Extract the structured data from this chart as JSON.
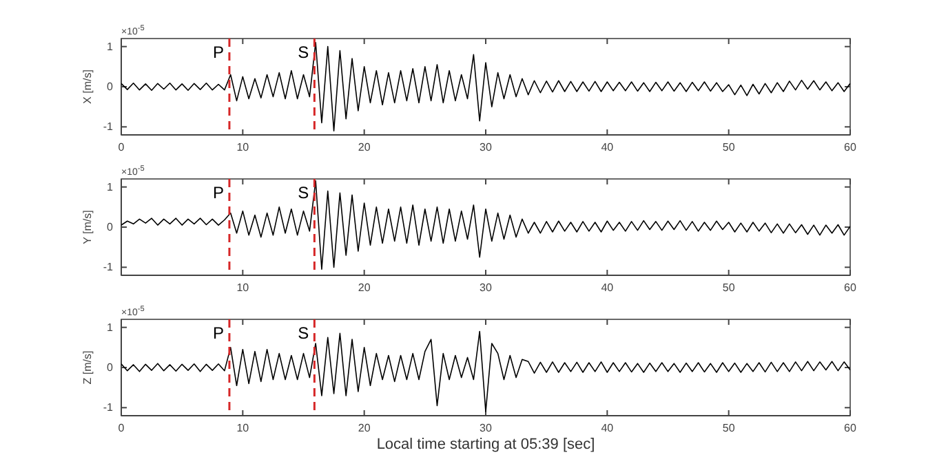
{
  "chart_data": [
    {
      "type": "line",
      "ylabel": "X [m/s]",
      "annotations": [
        "×10$^{-5}$"
      ],
      "xlim": [
        0,
        60
      ],
      "xticks": [
        0,
        10,
        20,
        30,
        40,
        50,
        60
      ],
      "ylim": [
        -1.2,
        1.2
      ],
      "yticks": [
        -1,
        0,
        1
      ],
      "grid": false,
      "marker": "none",
      "line_style": "solid",
      "ref_lines": [
        {
          "axis": "x",
          "value": 8.9,
          "label": "P",
          "color": "#d62728",
          "line_style": "dashed"
        },
        {
          "axis": "x",
          "value": 15.9,
          "label": "S",
          "color": "#d62728",
          "line_style": "dashed"
        }
      ],
      "x": [
        0,
        0.5,
        1,
        1.5,
        2,
        2.5,
        3,
        3.5,
        4,
        4.5,
        5,
        5.5,
        6,
        6.5,
        7,
        7.5,
        8,
        8.5,
        9,
        9.5,
        10,
        10.5,
        11,
        11.5,
        12,
        12.5,
        13,
        13.5,
        14,
        14.5,
        15,
        15.5,
        16,
        16.5,
        17,
        17.5,
        18,
        18.5,
        19,
        19.5,
        20,
        20.5,
        21,
        21.5,
        22,
        22.5,
        23,
        23.5,
        24,
        24.5,
        25,
        25.5,
        26,
        26.5,
        27,
        27.5,
        28,
        28.5,
        29,
        29.5,
        30,
        30.5,
        31,
        31.5,
        32,
        32.5,
        33,
        33.5,
        34,
        34.5,
        35,
        35.5,
        36,
        36.5,
        37,
        37.5,
        38,
        38.5,
        39,
        39.5,
        40,
        40.5,
        41,
        41.5,
        42,
        42.5,
        43,
        43.5,
        44,
        44.5,
        45,
        45.5,
        46,
        46.5,
        47,
        47.5,
        48,
        48.5,
        49,
        49.5,
        50,
        50.5,
        51,
        51.5,
        52,
        52.5,
        53,
        53.5,
        54,
        54.5,
        55,
        55.5,
        56,
        56.5,
        57,
        57.5,
        58,
        58.5,
        59,
        59.5,
        60
      ],
      "series": [
        {
          "color": "#000000",
          "values": [
            0.08,
            -0.07,
            0.09,
            -0.08,
            0.07,
            -0.09,
            0.08,
            -0.06,
            0.09,
            -0.08,
            0.07,
            -0.09,
            0.08,
            -0.07,
            0.09,
            -0.08,
            0.06,
            -0.08,
            0.3,
            -0.35,
            0.25,
            -0.3,
            0.2,
            -0.28,
            0.3,
            -0.25,
            0.35,
            -0.3,
            0.4,
            -0.3,
            0.3,
            -0.25,
            1.1,
            -0.9,
            1.0,
            -1.1,
            0.9,
            -0.8,
            0.7,
            -0.6,
            0.5,
            -0.4,
            0.4,
            -0.45,
            0.35,
            -0.4,
            0.4,
            -0.35,
            0.45,
            -0.4,
            0.5,
            -0.35,
            0.55,
            -0.4,
            0.4,
            -0.35,
            0.3,
            -0.3,
            0.8,
            -0.85,
            0.6,
            -0.5,
            0.35,
            -0.3,
            0.3,
            -0.25,
            0.2,
            -0.2,
            0.15,
            -0.15,
            0.14,
            -0.13,
            0.15,
            -0.12,
            0.13,
            -0.12,
            0.12,
            -0.11,
            0.13,
            -0.12,
            0.12,
            -0.1,
            0.11,
            -0.1,
            0.12,
            -0.11,
            0.1,
            -0.12,
            0.11,
            -0.1,
            0.12,
            -0.11,
            0.1,
            -0.12,
            0.11,
            -0.1,
            0.12,
            -0.11,
            0.1,
            -0.12,
            0.05,
            -0.2,
            0.04,
            -0.22,
            0.06,
            -0.18,
            0.08,
            -0.15,
            0.1,
            -0.12,
            0.14,
            -0.08,
            0.16,
            -0.06,
            0.15,
            -0.08,
            0.12,
            -0.1,
            0.1,
            -0.12,
            0.08
          ]
        }
      ]
    },
    {
      "type": "line",
      "ylabel": "Y [m/s]",
      "annotations": [
        "×10$^{-5}$"
      ],
      "xlim": [
        0,
        60
      ],
      "xticks": [
        {
          "value": 0,
          "label": null
        },
        10,
        20,
        30,
        40,
        50,
        60
      ],
      "ylim": [
        -1.2,
        1.2
      ],
      "yticks": [
        -1,
        0,
        1
      ],
      "grid": false,
      "marker": "none",
      "line_style": "solid",
      "ref_lines": [
        {
          "axis": "x",
          "value": 8.9,
          "label": "P",
          "color": "#d62728",
          "line_style": "dashed"
        },
        {
          "axis": "x",
          "value": 15.9,
          "label": "S",
          "color": "#d62728",
          "line_style": "dashed"
        }
      ],
      "x": [
        0,
        0.5,
        1,
        1.5,
        2,
        2.5,
        3,
        3.5,
        4,
        4.5,
        5,
        5.5,
        6,
        6.5,
        7,
        7.5,
        8,
        8.5,
        9,
        9.5,
        10,
        10.5,
        11,
        11.5,
        12,
        12.5,
        13,
        13.5,
        14,
        14.5,
        15,
        15.5,
        16,
        16.5,
        17,
        17.5,
        18,
        18.5,
        19,
        19.5,
        20,
        20.5,
        21,
        21.5,
        22,
        22.5,
        23,
        23.5,
        24,
        24.5,
        25,
        25.5,
        26,
        26.5,
        27,
        27.5,
        28,
        28.5,
        29,
        29.5,
        30,
        30.5,
        31,
        31.5,
        32,
        32.5,
        33,
        33.5,
        34,
        34.5,
        35,
        35.5,
        36,
        36.5,
        37,
        37.5,
        38,
        38.5,
        39,
        39.5,
        40,
        40.5,
        41,
        41.5,
        42,
        42.5,
        43,
        43.5,
        44,
        44.5,
        45,
        45.5,
        46,
        46.5,
        47,
        47.5,
        48,
        48.5,
        49,
        49.5,
        50,
        50.5,
        51,
        51.5,
        52,
        52.5,
        53,
        53.5,
        54,
        54.5,
        55,
        55.5,
        56,
        56.5,
        57,
        57.5,
        58,
        58.5,
        59,
        59.5,
        60
      ],
      "series": [
        {
          "color": "#000000",
          "values": [
            0.05,
            0.15,
            0.08,
            0.2,
            0.1,
            0.22,
            0.05,
            0.2,
            0.08,
            0.22,
            0.05,
            0.2,
            0.08,
            0.22,
            0.06,
            0.2,
            0.05,
            0.18,
            0.35,
            -0.15,
            0.4,
            -0.2,
            0.3,
            -0.25,
            0.35,
            -0.2,
            0.5,
            -0.15,
            0.45,
            -0.2,
            0.4,
            -0.1,
            1.15,
            -1.05,
            0.9,
            -1.0,
            0.85,
            -0.7,
            0.8,
            -0.6,
            0.6,
            -0.45,
            0.5,
            -0.4,
            0.45,
            -0.35,
            0.5,
            -0.4,
            0.55,
            -0.45,
            0.45,
            -0.35,
            0.5,
            -0.4,
            0.45,
            -0.35,
            0.4,
            -0.3,
            0.55,
            -0.75,
            0.45,
            -0.35,
            0.35,
            -0.3,
            0.3,
            -0.25,
            0.2,
            -0.15,
            0.12,
            -0.15,
            0.14,
            -0.12,
            0.15,
            -0.1,
            0.12,
            -0.12,
            0.14,
            -0.1,
            0.12,
            -0.12,
            0.15,
            -0.08,
            0.12,
            -0.1,
            0.14,
            -0.08,
            0.16,
            -0.06,
            0.14,
            -0.08,
            0.15,
            -0.06,
            0.16,
            -0.08,
            0.14,
            -0.1,
            0.12,
            -0.08,
            0.15,
            -0.06,
            0.12,
            -0.12,
            0.1,
            -0.12,
            0.12,
            -0.1,
            0.1,
            -0.14,
            0.08,
            -0.15,
            0.08,
            -0.14,
            0.06,
            -0.18,
            0.05,
            -0.2,
            0.05,
            -0.15,
            0.06,
            -0.2,
            0.02
          ]
        }
      ]
    },
    {
      "type": "line",
      "ylabel": "Z [m/s]",
      "xlabel": "Local time starting at 05:39 [sec]",
      "annotations": [
        "×10$^{-5}$"
      ],
      "xlim": [
        0,
        60
      ],
      "xticks": [
        0,
        10,
        20,
        30,
        40,
        50,
        60
      ],
      "ylim": [
        -1.2,
        1.2
      ],
      "yticks": [
        -1,
        0,
        1
      ],
      "grid": false,
      "marker": "none",
      "line_style": "solid",
      "ref_lines": [
        {
          "axis": "x",
          "value": 8.9,
          "label": "P",
          "color": "#d62728",
          "line_style": "dashed"
        },
        {
          "axis": "x",
          "value": 15.9,
          "label": "S",
          "color": "#d62728",
          "line_style": "dashed"
        }
      ],
      "x": [
        0,
        0.5,
        1,
        1.5,
        2,
        2.5,
        3,
        3.5,
        4,
        4.5,
        5,
        5.5,
        6,
        6.5,
        7,
        7.5,
        8,
        8.5,
        9,
        9.5,
        10,
        10.5,
        11,
        11.5,
        12,
        12.5,
        13,
        13.5,
        14,
        14.5,
        15,
        15.5,
        16,
        16.5,
        17,
        17.5,
        18,
        18.5,
        19,
        19.5,
        20,
        20.5,
        21,
        21.5,
        22,
        22.5,
        23,
        23.5,
        24,
        24.5,
        25,
        25.5,
        26,
        26.5,
        27,
        27.5,
        28,
        28.5,
        29,
        29.5,
        30,
        30.5,
        31,
        31.5,
        32,
        32.5,
        33,
        33.5,
        34,
        34.5,
        35,
        35.5,
        36,
        36.5,
        37,
        37.5,
        38,
        38.5,
        39,
        39.5,
        40,
        40.5,
        41,
        41.5,
        42,
        42.5,
        43,
        43.5,
        44,
        44.5,
        45,
        45.5,
        46,
        46.5,
        47,
        47.5,
        48,
        48.5,
        49,
        49.5,
        50,
        50.5,
        51,
        51.5,
        52,
        52.5,
        53,
        53.5,
        54,
        54.5,
        55,
        55.5,
        56,
        56.5,
        57,
        57.5,
        58,
        58.5,
        59,
        59.5,
        60
      ],
      "series": [
        {
          "color": "#000000",
          "values": [
            0.09,
            -0.08,
            0.07,
            -0.1,
            0.08,
            -0.07,
            0.1,
            -0.08,
            0.07,
            -0.09,
            0.08,
            -0.07,
            0.09,
            -0.1,
            0.08,
            -0.07,
            0.09,
            -0.08,
            0.5,
            -0.45,
            0.45,
            -0.4,
            0.4,
            -0.35,
            0.45,
            -0.3,
            0.35,
            -0.3,
            0.3,
            -0.3,
            0.35,
            -0.25,
            0.6,
            -0.7,
            0.75,
            -0.65,
            0.85,
            -0.7,
            0.7,
            -0.6,
            0.5,
            -0.45,
            0.35,
            -0.3,
            0.3,
            -0.35,
            0.3,
            -0.3,
            0.35,
            -0.3,
            0.4,
            0.7,
            -0.95,
            0.35,
            -0.3,
            0.3,
            -0.25,
            0.25,
            -0.3,
            0.9,
            -1.1,
            0.6,
            0.35,
            -0.3,
            0.3,
            -0.25,
            0.2,
            0.15,
            -0.14,
            0.13,
            -0.12,
            0.14,
            -0.12,
            0.12,
            -0.1,
            0.13,
            -0.12,
            0.12,
            -0.1,
            0.14,
            -0.12,
            0.12,
            -0.1,
            0.12,
            -0.11,
            0.1,
            -0.12,
            0.11,
            -0.1,
            0.12,
            -0.1,
            0.1,
            -0.12,
            0.11,
            -0.1,
            0.12,
            -0.11,
            0.1,
            -0.12,
            0.12,
            -0.1,
            0.11,
            -0.12,
            0.1,
            -0.1,
            0.12,
            -0.11,
            0.13,
            -0.1,
            0.12,
            -0.1,
            0.14,
            -0.08,
            0.15,
            -0.08,
            0.14,
            -0.06,
            0.15,
            -0.08,
            0.14,
            -0.06
          ]
        }
      ]
    }
  ]
}
